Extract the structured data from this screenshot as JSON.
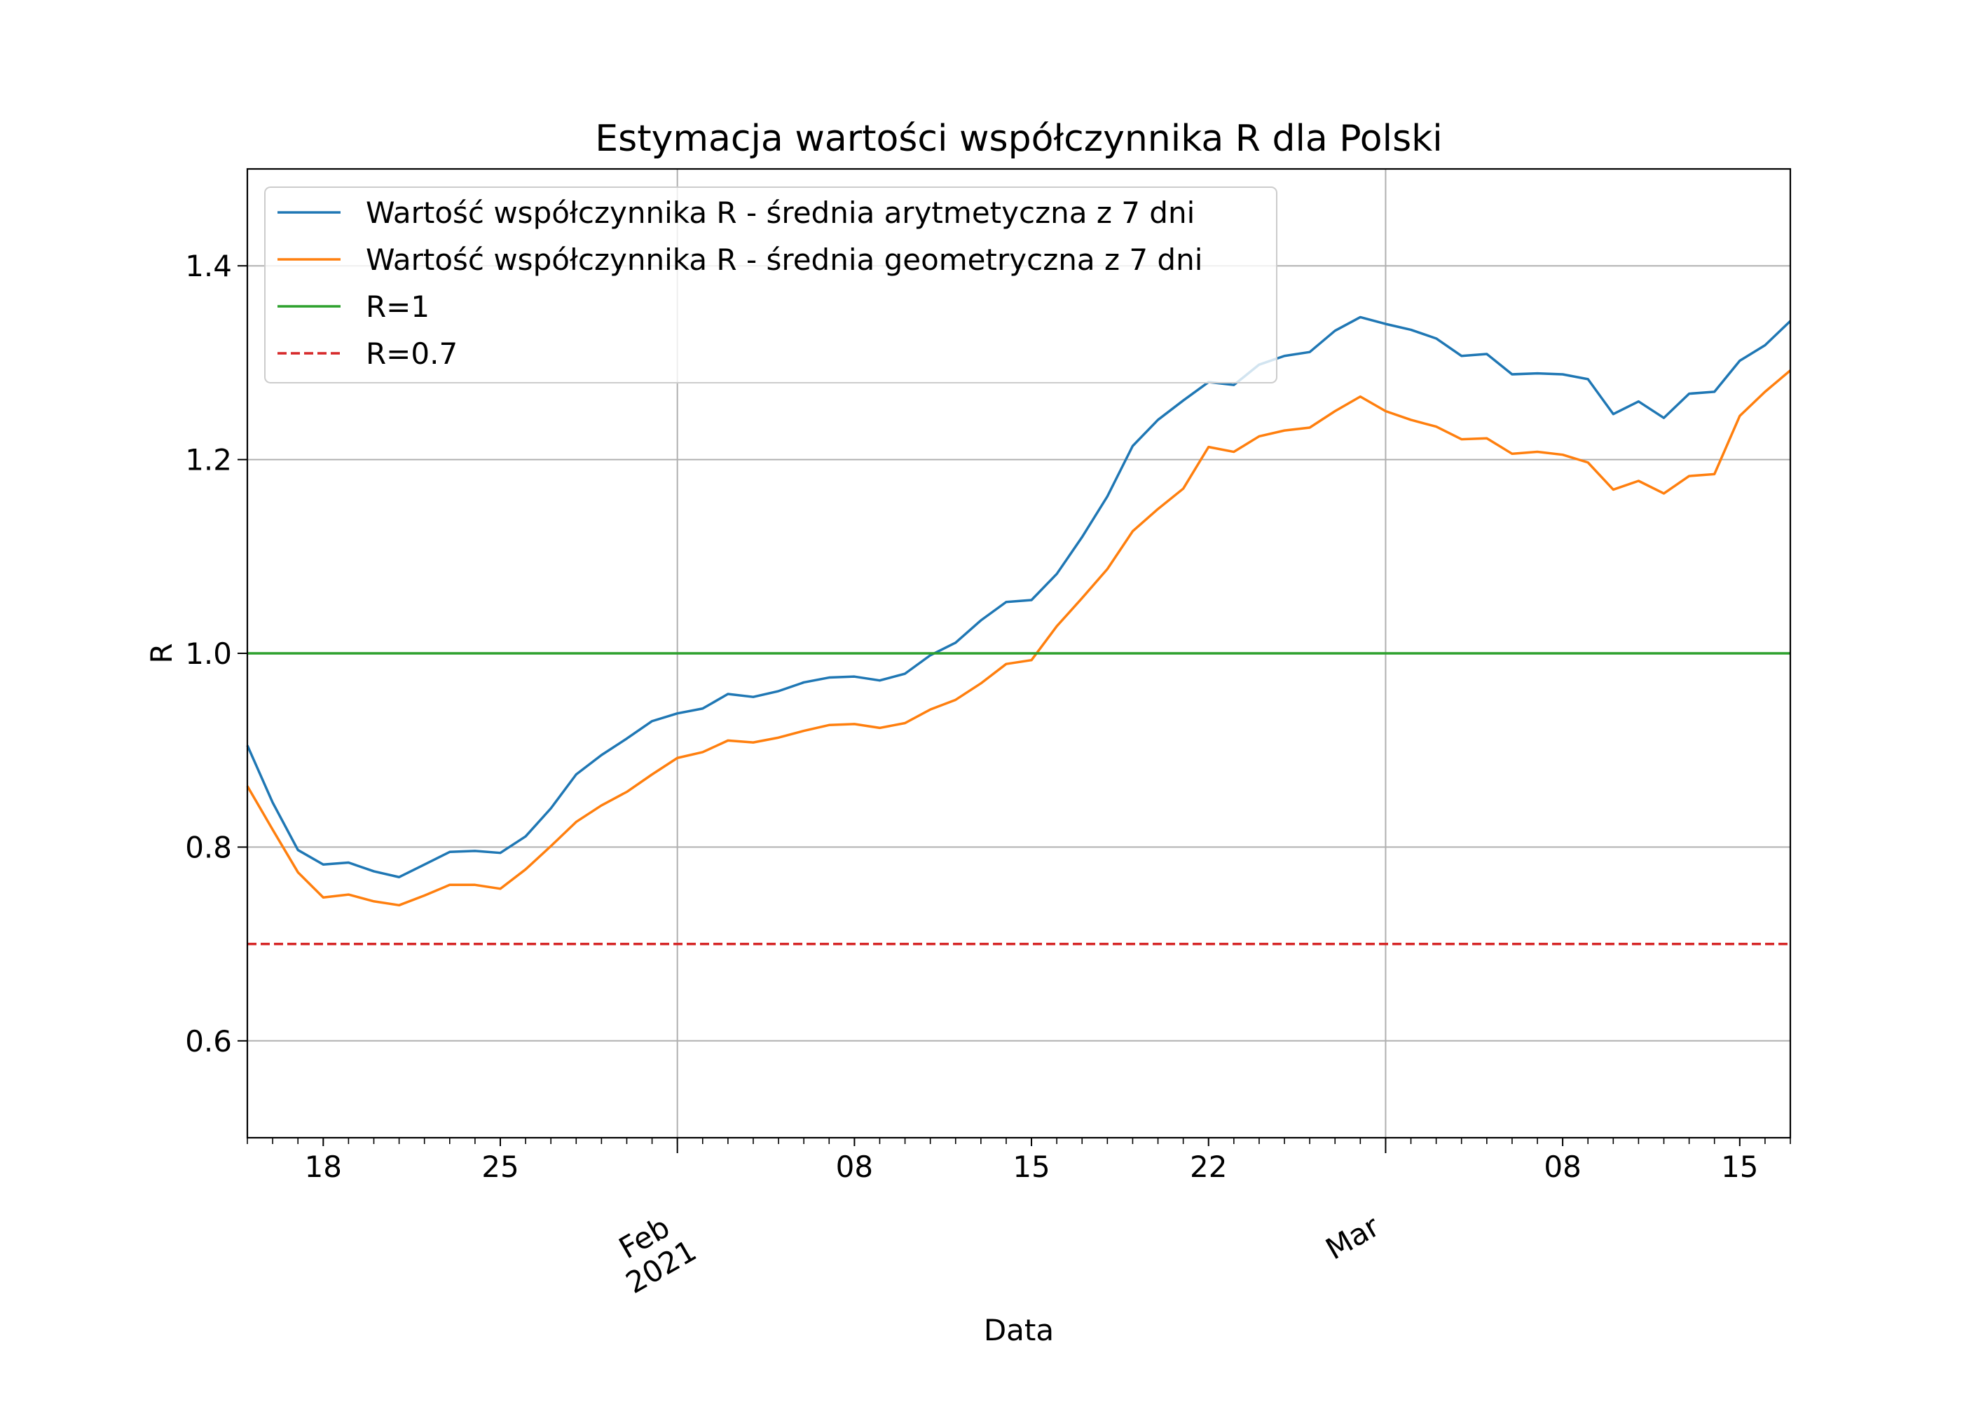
{
  "chart_data": {
    "type": "line",
    "title": "Estymacja wartości współczynnika R dla Polski",
    "xlabel": "Data",
    "ylabel": "R",
    "ylim": [
      0.5,
      1.5
    ],
    "xlim": [
      "2021-01-15",
      "2021-03-17"
    ],
    "grid": true,
    "legend_position": "top-left",
    "y_ticks": [
      0.6,
      0.8,
      1.0,
      1.2,
      1.4
    ],
    "y_tick_labels": [
      "0.6",
      "0.8",
      "1.0",
      "1.2",
      "1.4"
    ],
    "x_major_ticks": [
      {
        "date": "2021-02-01",
        "label_line1": "Feb",
        "label_line2": "2021"
      },
      {
        "date": "2021-03-01",
        "label_line1": "Mar",
        "label_line2": ""
      }
    ],
    "x_minor_ticks": [
      {
        "date": "2021-01-18",
        "label": "18"
      },
      {
        "date": "2021-01-25",
        "label": "25"
      },
      {
        "date": "2021-02-08",
        "label": "08"
      },
      {
        "date": "2021-02-15",
        "label": "15"
      },
      {
        "date": "2021-02-22",
        "label": "22"
      },
      {
        "date": "2021-03-08",
        "label": "08"
      },
      {
        "date": "2021-03-15",
        "label": "15"
      }
    ],
    "series": [
      {
        "name": "Wartość współczynnika R - średnia arytmetyczna z 7 dni",
        "color": "#1f77b4",
        "style": "solid",
        "x": [
          "2021-01-15",
          "2021-01-16",
          "2021-01-17",
          "2021-01-18",
          "2021-01-19",
          "2021-01-20",
          "2021-01-21",
          "2021-01-22",
          "2021-01-23",
          "2021-01-24",
          "2021-01-25",
          "2021-01-26",
          "2021-01-27",
          "2021-01-28",
          "2021-01-29",
          "2021-01-30",
          "2021-01-31",
          "2021-02-01",
          "2021-02-02",
          "2021-02-03",
          "2021-02-04",
          "2021-02-05",
          "2021-02-06",
          "2021-02-07",
          "2021-02-08",
          "2021-02-09",
          "2021-02-10",
          "2021-02-11",
          "2021-02-12",
          "2021-02-13",
          "2021-02-14",
          "2021-02-15",
          "2021-02-16",
          "2021-02-17",
          "2021-02-18",
          "2021-02-19",
          "2021-02-20",
          "2021-02-21",
          "2021-02-22",
          "2021-02-23",
          "2021-02-24",
          "2021-02-25",
          "2021-02-26",
          "2021-02-27",
          "2021-02-28",
          "2021-03-01",
          "2021-03-02",
          "2021-03-03",
          "2021-03-04",
          "2021-03-05",
          "2021-03-06",
          "2021-03-07",
          "2021-03-08",
          "2021-03-09",
          "2021-03-10",
          "2021-03-11",
          "2021-03-12",
          "2021-03-13",
          "2021-03-14",
          "2021-03-15",
          "2021-03-16",
          "2021-03-17"
        ],
        "values": [
          0.905,
          0.846,
          0.797,
          0.782,
          0.784,
          0.775,
          0.769,
          0.782,
          0.795,
          0.796,
          0.794,
          0.811,
          0.84,
          0.875,
          0.895,
          0.912,
          0.93,
          0.938,
          0.943,
          0.958,
          0.955,
          0.961,
          0.97,
          0.975,
          0.976,
          0.972,
          0.979,
          0.998,
          1.011,
          1.034,
          1.053,
          1.055,
          1.082,
          1.12,
          1.162,
          1.214,
          1.241,
          1.261,
          1.28,
          1.277,
          1.298,
          1.307,
          1.311,
          1.333,
          1.347,
          1.34,
          1.334,
          1.325,
          1.307,
          1.309,
          1.288,
          1.289,
          1.288,
          1.283,
          1.247,
          1.26,
          1.243,
          1.268,
          1.27,
          1.302,
          1.318,
          1.343
        ]
      },
      {
        "name": "Wartość współczynnika R - średnia geometryczna z 7 dni",
        "color": "#ff7f0e",
        "style": "solid",
        "x": [
          "2021-01-15",
          "2021-01-16",
          "2021-01-17",
          "2021-01-18",
          "2021-01-19",
          "2021-01-20",
          "2021-01-21",
          "2021-01-22",
          "2021-01-23",
          "2021-01-24",
          "2021-01-25",
          "2021-01-26",
          "2021-01-27",
          "2021-01-28",
          "2021-01-29",
          "2021-01-30",
          "2021-01-31",
          "2021-02-01",
          "2021-02-02",
          "2021-02-03",
          "2021-02-04",
          "2021-02-05",
          "2021-02-06",
          "2021-02-07",
          "2021-02-08",
          "2021-02-09",
          "2021-02-10",
          "2021-02-11",
          "2021-02-12",
          "2021-02-13",
          "2021-02-14",
          "2021-02-15",
          "2021-02-16",
          "2021-02-17",
          "2021-02-18",
          "2021-02-19",
          "2021-02-20",
          "2021-02-21",
          "2021-02-22",
          "2021-02-23",
          "2021-02-24",
          "2021-02-25",
          "2021-02-26",
          "2021-02-27",
          "2021-02-28",
          "2021-03-01",
          "2021-03-02",
          "2021-03-03",
          "2021-03-04",
          "2021-03-05",
          "2021-03-06",
          "2021-03-07",
          "2021-03-08",
          "2021-03-09",
          "2021-03-10",
          "2021-03-11",
          "2021-03-12",
          "2021-03-13",
          "2021-03-14",
          "2021-03-15",
          "2021-03-16",
          "2021-03-17"
        ],
        "values": [
          0.863,
          0.818,
          0.774,
          0.748,
          0.751,
          0.744,
          0.74,
          0.75,
          0.761,
          0.761,
          0.757,
          0.777,
          0.801,
          0.826,
          0.843,
          0.857,
          0.875,
          0.892,
          0.898,
          0.91,
          0.908,
          0.913,
          0.92,
          0.926,
          0.927,
          0.923,
          0.928,
          0.942,
          0.952,
          0.969,
          0.989,
          0.993,
          1.028,
          1.057,
          1.087,
          1.126,
          1.149,
          1.17,
          1.213,
          1.208,
          1.224,
          1.23,
          1.233,
          1.25,
          1.265,
          1.25,
          1.241,
          1.234,
          1.221,
          1.222,
          1.206,
          1.208,
          1.205,
          1.197,
          1.169,
          1.178,
          1.165,
          1.183,
          1.185,
          1.245,
          1.27,
          1.292
        ]
      },
      {
        "name": "R=1",
        "color": "#2ca02c",
        "style": "solid",
        "constant": 1.0
      },
      {
        "name": "R=0.7",
        "color": "#d62728",
        "style": "dashed",
        "constant": 0.7
      }
    ]
  }
}
